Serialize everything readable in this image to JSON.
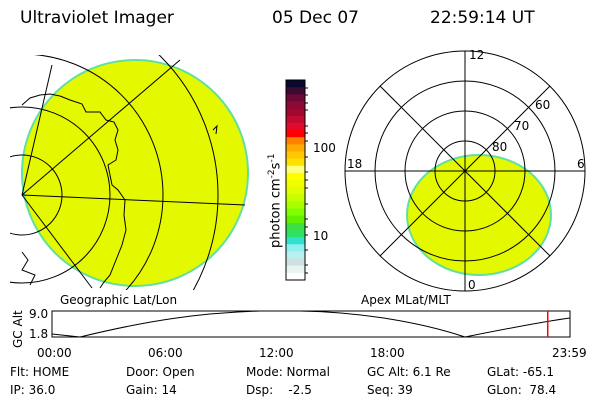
{
  "header": {
    "instrument": "Ultraviolet Imager",
    "date": "05 Dec 07",
    "time": "22:59:14 UT"
  },
  "left_panel": {
    "label": "Geographic Lat/Lon"
  },
  "right_panel": {
    "label": "Apex MLat/MLT",
    "mlt_labels": [
      "12",
      "18",
      "6",
      "0"
    ],
    "lat_labels": [
      "60",
      "70",
      "80"
    ]
  },
  "colorbar": {
    "unit_label": "photon cm",
    "unit_sup1": "-2",
    "unit_mid": "s",
    "unit_sup2": "-1",
    "ticks": [
      "100",
      "10"
    ],
    "colors": [
      "#0a0a30",
      "#3a0a30",
      "#6a0a35",
      "#8a0a35",
      "#a0082e",
      "#c00a30",
      "#e00a30",
      "#ff0000",
      "#ff7f00",
      "#ffaa00",
      "#ffc800",
      "#ffe000",
      "#ffff80",
      "#ffff00",
      "#f0ff00",
      "#e0ff00",
      "#c8ff00",
      "#a8ff00",
      "#80ff00",
      "#60f000",
      "#40e040",
      "#30e060",
      "#30e0d0",
      "#90f0f0",
      "#b8f0f0",
      "#d0e0e0",
      "#e8f4f0",
      "#ffffff"
    ]
  },
  "altitude_plot": {
    "ylabel": "GC Alt",
    "yticks": [
      "9.0",
      "1.8"
    ],
    "xticks": [
      "00:00",
      "06:00",
      "12:00",
      "18:00",
      "23:59"
    ],
    "current_time_fraction": 0.957,
    "marker_color": "#ff0000"
  },
  "status": {
    "flt": "Flt: HOME",
    "ip": "IP: 36.0",
    "door": "Door: Open",
    "gain": "Gain: 14",
    "mode": "Mode: Normal",
    "dsp": "Dsp:    -2.5",
    "gc_alt": "GC Alt: 6.1 Re",
    "seq": "Seq: 39",
    "glat": "GLat: -65.1",
    "glon": "GLon:  78.4"
  },
  "colors": {
    "aurora": "#e4f800",
    "aurora_edge": "#60e0a0"
  }
}
